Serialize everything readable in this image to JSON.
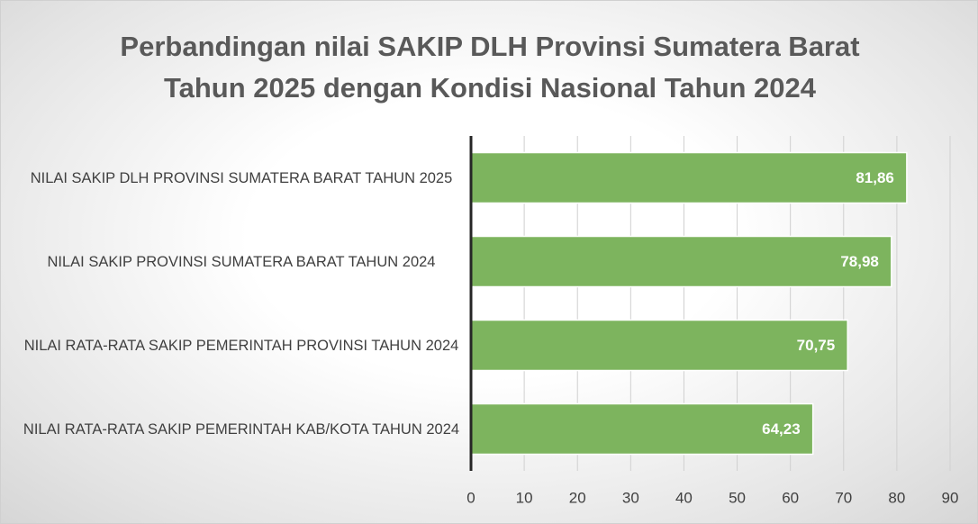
{
  "chart_data": {
    "type": "bar",
    "orientation": "horizontal",
    "title": "Perbandingan nilai SAKIP DLH Provinsi Sumatera Barat\nTahun 2025 dengan Kondisi Nasional Tahun 2024",
    "categories": [
      "NILAI SAKIP DLH PROVINSI SUMATERA BARAT TAHUN 2025",
      "NILAI SAKIP PROVINSI SUMATERA BARAT TAHUN 2024",
      "NILAI RATA-RATA SAKIP PEMERINTAH PROVINSI TAHUN 2024",
      "NILAI RATA-RATA SAKIP PEMERINTAH KAB/KOTA TAHUN 2024"
    ],
    "values": [
      81.86,
      78.98,
      70.75,
      64.23
    ],
    "value_labels": [
      "81,86",
      "78,98",
      "70,75",
      "64,23"
    ],
    "color": "#7db45e",
    "xlim": [
      0,
      90
    ],
    "xticks": [
      0,
      10,
      20,
      30,
      40,
      50,
      60,
      70,
      80,
      90
    ],
    "grid": true
  }
}
